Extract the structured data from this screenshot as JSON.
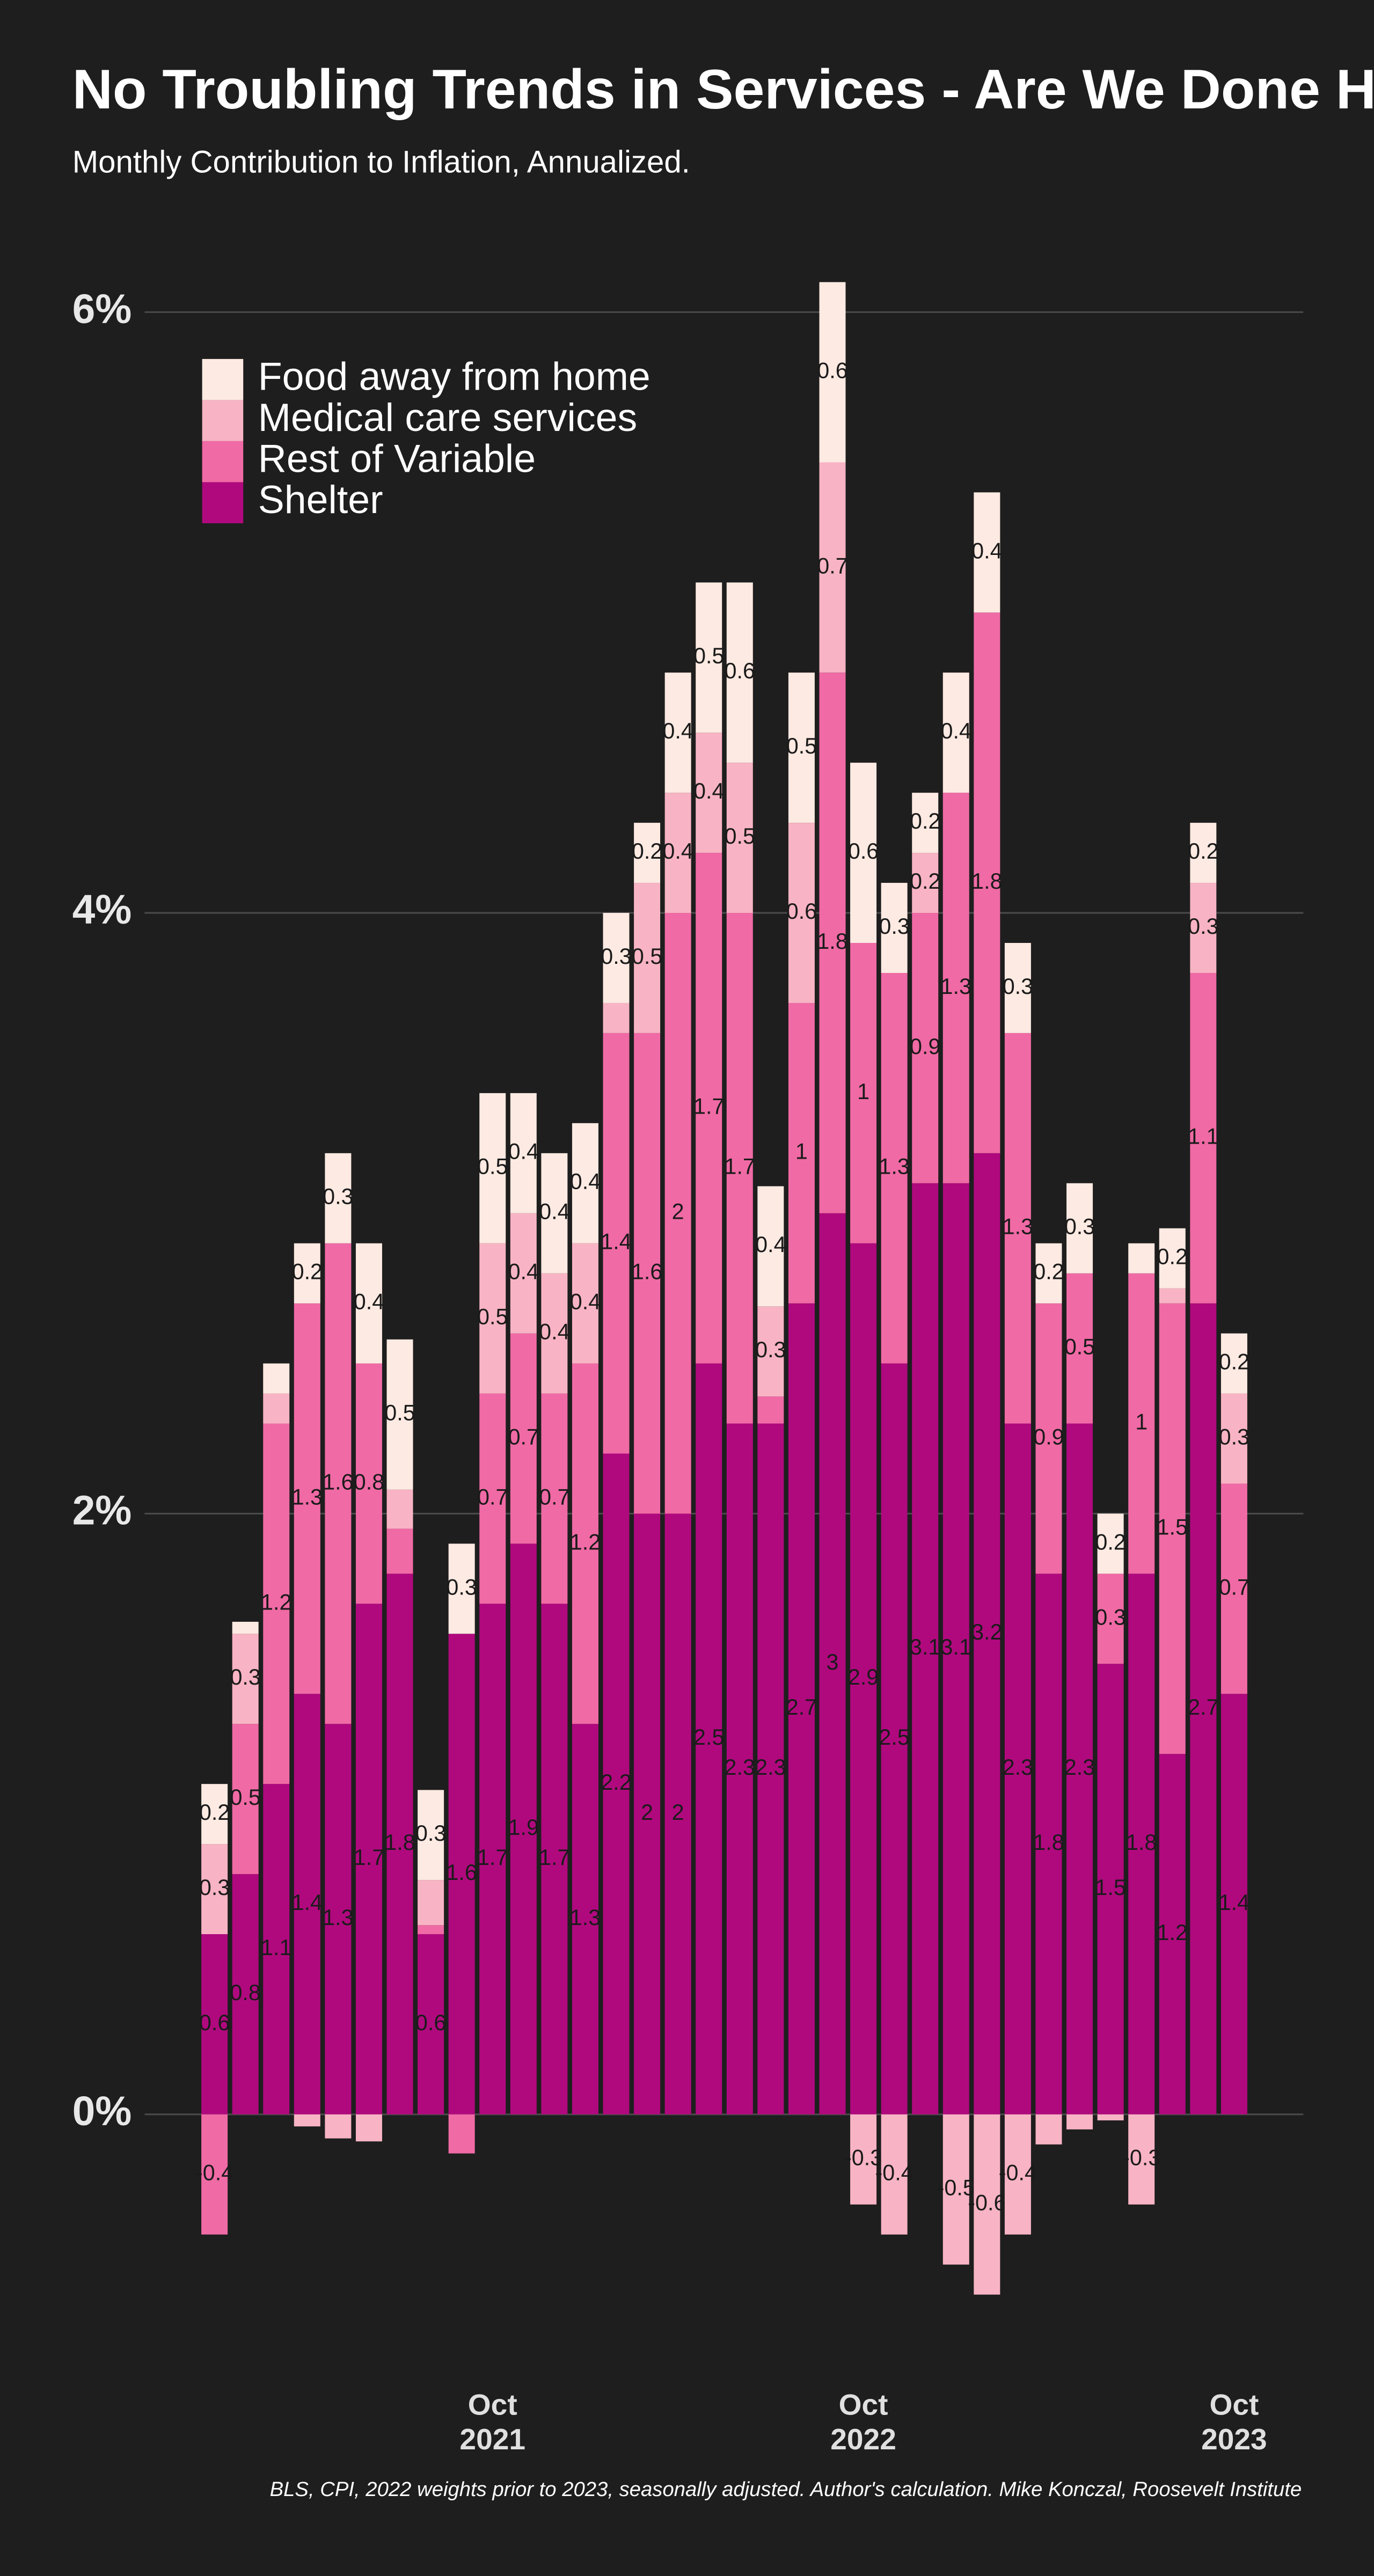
{
  "chart_data": {
    "type": "stacked-bar",
    "title": "No Troubling Trends in Services - Are We Done Ho",
    "subtitle": "Monthly Contribution to Inflation, Annualized.",
    "source": "BLS, CPI, 2022 weights prior to 2023, seasonally adjusted. Author's calculation. Mike Konczal, Roosevelt Institute",
    "categories": [
      null,
      null,
      null,
      null,
      null,
      null,
      null,
      null,
      null,
      "Oct 2021",
      null,
      null,
      null,
      null,
      null,
      null,
      null,
      null,
      null,
      null,
      null,
      "Oct 2022",
      null,
      null,
      null,
      null,
      null,
      null,
      null,
      null,
      null,
      null,
      null,
      "Oct 2023"
    ],
    "series": [
      {
        "name": "Food away from home",
        "color": "#fdeae2",
        "values": [
          0.2,
          0.04,
          0.1,
          0.2,
          0.3,
          0.4,
          0.5,
          0.3,
          0.3,
          0.5,
          0.4,
          0.4,
          0.4,
          0.3,
          0.2,
          0.4,
          0.5,
          0.6,
          0.4,
          0.5,
          0.6,
          0.6,
          0.3,
          0.2,
          0.4,
          0.4,
          0.3,
          0.2,
          0.3,
          0.2,
          0.1,
          0.2,
          0.2,
          0.2
        ]
      },
      {
        "name": "Medical care services",
        "color": "#f8b4c4",
        "values": [
          0.3,
          0.3,
          0.1,
          -0.04,
          -0.08,
          -0.09,
          0.13,
          0.15,
          0,
          0.5,
          0.4,
          0.4,
          0.4,
          0.1,
          0.5,
          0.4,
          0.4,
          0.5,
          0.3,
          0.6,
          0.7,
          -0.3,
          -0.4,
          0.2,
          -0.5,
          -0.6,
          -0.4,
          -0.1,
          -0.05,
          -0.02,
          -0.3,
          0.05,
          0.3,
          0.3
        ]
      },
      {
        "name": "Rest of Variable",
        "color": "#f06aa5",
        "values": [
          -0.4,
          0.5,
          1.2,
          1.3,
          1.6,
          0.8,
          0.15,
          0.03,
          -0.13,
          0.7,
          0.7,
          0.7,
          1.2,
          1.4,
          1.6,
          2,
          1.7,
          1.7,
          0.09,
          1,
          1.8,
          1,
          1.3,
          0.9,
          1.3,
          1.8,
          1.3,
          0.9,
          0.5,
          0.3,
          1,
          1.5,
          1.1,
          0.7
        ]
      },
      {
        "name": "Shelter",
        "color": "#b0097e",
        "values": [
          0.6,
          0.8,
          1.1,
          1.4,
          1.3,
          1.7,
          1.8,
          0.6,
          1.6,
          1.7,
          1.9,
          1.7,
          1.3,
          2.2,
          2,
          2,
          2.5,
          2.3,
          2.3,
          2.7,
          3,
          2.9,
          2.5,
          3.1,
          3.1,
          3.2,
          2.3,
          1.8,
          2.3,
          1.5,
          1.8,
          1.2,
          2.7,
          1.4
        ]
      }
    ],
    "ylim": [
      -0.7,
      6
    ],
    "yticks": [
      {
        "value": 0,
        "label": "0%"
      },
      {
        "value": 2,
        "label": "2%"
      },
      {
        "value": 4,
        "label": "4%"
      },
      {
        "value": 6,
        "label": "6%"
      }
    ],
    "grid": true,
    "legend": "top-left"
  }
}
